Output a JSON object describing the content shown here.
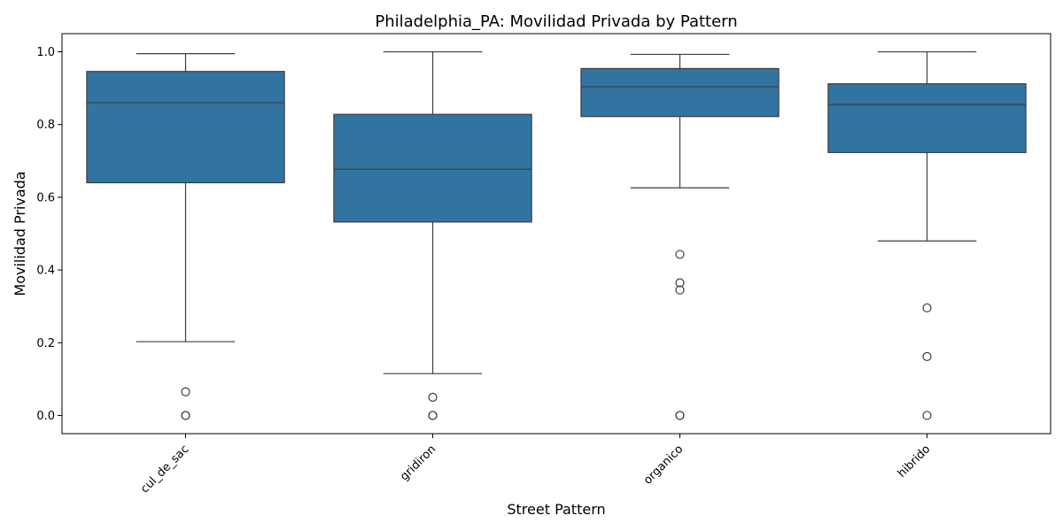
{
  "chart_data": {
    "type": "box",
    "title": "Philadelphia_PA: Movilidad Privada by Pattern",
    "xlabel": "Street Pattern",
    "ylabel": "Movilidad Privada",
    "ylim": [
      -0.05,
      1.05
    ],
    "yticks": [
      "0.0",
      "0.2",
      "0.4",
      "0.6",
      "0.8",
      "1.0"
    ],
    "grid": false,
    "box_color": "#3274a1",
    "categories": [
      "cul_de_sac",
      "gridiron",
      "organico",
      "hibrido"
    ],
    "boxes": [
      {
        "whisker_low": 0.203,
        "q1": 0.64,
        "median": 0.86,
        "q3": 0.946,
        "whisker_high": 0.995,
        "outliers": [
          0.065,
          0.0,
          0.0
        ]
      },
      {
        "whisker_low": 0.115,
        "q1": 0.532,
        "median": 0.677,
        "q3": 0.828,
        "whisker_high": 1.0,
        "outliers": [
          0.05,
          0.0,
          0.0
        ]
      },
      {
        "whisker_low": 0.626,
        "q1": 0.822,
        "median": 0.904,
        "q3": 0.954,
        "whisker_high": 0.993,
        "outliers": [
          0.443,
          0.365,
          0.345,
          0.0,
          0.0
        ]
      },
      {
        "whisker_low": 0.48,
        "q1": 0.723,
        "median": 0.855,
        "q3": 0.912,
        "whisker_high": 1.0,
        "outliers": [
          0.296,
          0.162,
          0.0
        ]
      }
    ]
  }
}
